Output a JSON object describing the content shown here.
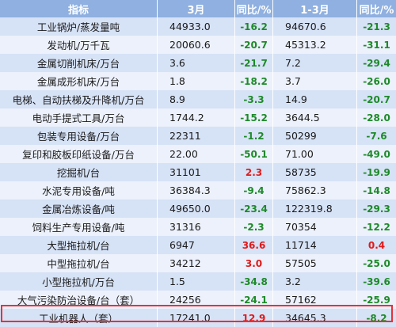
{
  "header": [
    "指标",
    "3月",
    "同比/%",
    "1-3月",
    "同比/%"
  ],
  "rows": [
    {
      "name": "工业锅炉/蒸发量吨",
      "mar": "44933.0",
      "mar_yoy": "-16.2",
      "q1": "94670.6",
      "q1_yoy": "-21.3"
    },
    {
      "name": "发动机/万千瓦",
      "mar": "20060.6",
      "mar_yoy": "-20.7",
      "q1": "45313.2",
      "q1_yoy": "-31.1"
    },
    {
      "name": "金属切削机床/万台",
      "mar": "3.6",
      "mar_yoy": "-21.7",
      "q1": "7.2",
      "q1_yoy": "-29.4"
    },
    {
      "name": "金属成形机床/万台",
      "mar": "1.8",
      "mar_yoy": "-18.2",
      "q1": "3.7",
      "q1_yoy": "-26.0"
    },
    {
      "name": "电梯、自动扶梯及升降机/万台",
      "mar": "8.9",
      "mar_yoy": "-3.3",
      "q1": "14.9",
      "q1_yoy": "-20.7"
    },
    {
      "name": "电动手提式工具/万台",
      "mar": "1744.2",
      "mar_yoy": "-15.2",
      "q1": "3644.5",
      "q1_yoy": "-28.0"
    },
    {
      "name": "包装专用设备/万台",
      "mar": "22311",
      "mar_yoy": "-1.2",
      "q1": "50299",
      "q1_yoy": "-7.6"
    },
    {
      "name": "复印和胶板印纸设备/万台",
      "mar": "22.00",
      "mar_yoy": "-50.1",
      "q1": "71.00",
      "q1_yoy": "-49.0"
    },
    {
      "name": "挖掘机/台",
      "mar": "31101",
      "mar_yoy": "2.3",
      "q1": "58735",
      "q1_yoy": "-19.9"
    },
    {
      "name": "水泥专用设备/吨",
      "mar": "36384.3",
      "mar_yoy": "-9.4",
      "q1": "75862.3",
      "q1_yoy": "-14.8"
    },
    {
      "name": "金属冶炼设备/吨",
      "mar": "49650.0",
      "mar_yoy": "-23.4",
      "q1": "122319.8",
      "q1_yoy": "-29.3"
    },
    {
      "name": "饲料生产专用设备/吨",
      "mar": "31316",
      "mar_yoy": "-2.3",
      "q1": "70354",
      "q1_yoy": "-12.2"
    },
    {
      "name": "大型拖拉机/台",
      "mar": "6947",
      "mar_yoy": "36.6",
      "q1": "11714",
      "q1_yoy": "0.4"
    },
    {
      "name": "中型拖拉机/台",
      "mar": "34212",
      "mar_yoy": "3.0",
      "q1": "57505",
      "q1_yoy": "-25.0"
    },
    {
      "name": "小型拖拉机/万台",
      "mar": "1.5",
      "mar_yoy": "-34.8",
      "q1": "3.2",
      "q1_yoy": "-39.6"
    },
    {
      "name": "大气污染防治设备/台（套）",
      "mar": "24256",
      "mar_yoy": "-24.1",
      "q1": "57162",
      "q1_yoy": "-25.9"
    },
    {
      "name": "工业机器人（套）",
      "mar": "17241.0",
      "mar_yoy": "12.9",
      "q1": "34645.3",
      "q1_yoy": "-8.2"
    }
  ],
  "colors": {
    "header_bg": "#8fb0e0",
    "row_dark": "#d6e2f6",
    "row_light": "#ecf1fb",
    "negative": "#1e8a2a",
    "positive": "#e01a1a",
    "highlight_border": "#e8303a"
  },
  "highlighted_row": 16
}
